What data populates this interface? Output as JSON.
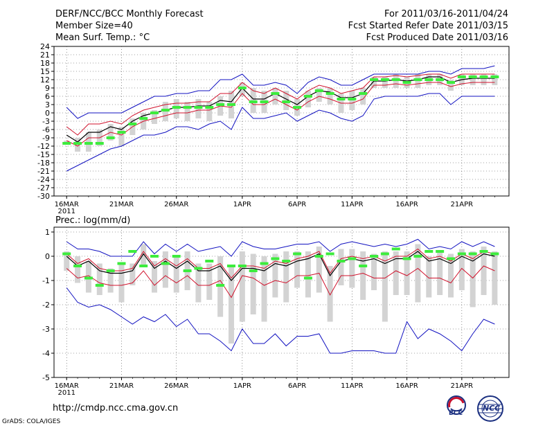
{
  "header": {
    "title": "DERF/NCC/BCC Monthly Forecast",
    "member_size": "Member Size=40",
    "variable": "Mean Surf. Temp.: °C",
    "period": "For 2011/03/16-2011/04/24",
    "started": "Fcst Started Refer Date 2011/03/15",
    "produced": "Fcst Produced Date 2011/03/16"
  },
  "footer": {
    "url": "http://cmdp.ncc.cma.gov.cn",
    "credit": "GrADS: COLA/IGES",
    "logo_bcc": "BCC",
    "logo_ncc": "NCC"
  },
  "colors": {
    "ensemble_mean": "#000000",
    "control": "#d0112b",
    "envelope": "#1010c0",
    "box": "#d3d3d3",
    "observed": "#3dec3d",
    "grid": "#444444"
  },
  "chart_data": [
    {
      "type": "line",
      "title": "Mean Surf. Temp.: °C",
      "x_tick_labels": [
        "16MAR",
        "21MAR",
        "26MAR",
        "1APR",
        "6APR",
        "11APR",
        "16APR",
        "21APR"
      ],
      "x_year_label": "2011",
      "x_tick_days": [
        1,
        6,
        11,
        17,
        22,
        27,
        32,
        37
      ],
      "days": [
        1,
        2,
        3,
        4,
        5,
        6,
        7,
        8,
        9,
        10,
        11,
        12,
        13,
        14,
        15,
        16,
        17,
        18,
        19,
        20,
        21,
        22,
        23,
        24,
        25,
        26,
        27,
        28,
        29,
        30,
        31,
        32,
        33,
        34,
        35,
        36,
        37,
        38,
        39,
        40
      ],
      "ylim": [
        -30,
        24
      ],
      "yticks": [
        -30,
        -27,
        -24,
        -21,
        -18,
        -15,
        -12,
        -9,
        -6,
        -3,
        0,
        3,
        6,
        9,
        12,
        15,
        18,
        21,
        24
      ],
      "series": [
        {
          "name": "Ensemble Mean",
          "values": [
            -8,
            -10.5,
            -7,
            -7,
            -5,
            -6,
            -3,
            -1,
            0,
            1,
            2,
            2,
            2.5,
            2.5,
            4.5,
            4,
            9,
            5,
            5,
            7,
            5,
            3,
            6,
            8,
            7.5,
            5.5,
            5.5,
            7,
            11.5,
            11.5,
            12,
            11.5,
            12,
            13,
            13,
            11,
            12,
            12.5,
            12.5,
            12.5
          ]
        },
        {
          "name": "Upper Red",
          "values": [
            -5,
            -8,
            -4,
            -4,
            -3,
            -4,
            -1,
            1,
            2,
            3,
            3.5,
            3.5,
            4,
            4,
            7,
            7,
            11,
            8,
            7,
            9,
            7,
            5,
            8,
            10,
            9,
            7,
            8,
            9,
            13,
            13,
            13.5,
            13,
            13.5,
            14,
            14,
            12.5,
            14,
            14,
            14,
            14
          ]
        },
        {
          "name": "Lower Red",
          "values": [
            -10,
            -12,
            -9,
            -9,
            -7,
            -8,
            -5,
            -3,
            -2,
            -1,
            0,
            0,
            1,
            1,
            2.5,
            2,
            7,
            3,
            3,
            5,
            3,
            1,
            4,
            6,
            5,
            3.5,
            3.5,
            5,
            10,
            10,
            10.5,
            10,
            10.5,
            11,
            11,
            9.5,
            10.5,
            11,
            11,
            11
          ]
        },
        {
          "name": "Max",
          "values": [
            2,
            -2,
            0,
            0,
            0,
            0,
            2,
            4,
            6,
            6,
            7,
            7,
            8,
            8,
            12,
            12,
            14,
            10,
            10,
            11,
            10,
            7,
            11,
            13,
            12,
            10,
            10,
            12,
            14,
            14,
            14,
            14,
            14,
            15,
            15,
            14,
            16,
            16,
            16,
            17
          ]
        },
        {
          "name": "Min",
          "values": [
            -21,
            -19,
            -17,
            -15,
            -13,
            -12,
            -10,
            -8,
            -8,
            -7,
            -5,
            -5,
            -6,
            -4,
            -3,
            -6,
            2,
            -2,
            -2,
            -1,
            0,
            -3,
            -1,
            1,
            0,
            -2,
            -3,
            -1,
            5,
            6,
            6,
            6,
            6,
            7,
            7,
            3,
            6,
            6,
            6,
            6
          ]
        }
      ],
      "boxes": {
        "high": [
          -10,
          -9,
          -7,
          -6,
          -4,
          -5,
          -2,
          0,
          1,
          4,
          5,
          4,
          5,
          4,
          6,
          8,
          11,
          9,
          8,
          9,
          8,
          5,
          8,
          9,
          9,
          7,
          8,
          9,
          13,
          13,
          14,
          13,
          14,
          14,
          14,
          12,
          14,
          14,
          14,
          14
        ],
        "low": [
          -11,
          -14,
          -14,
          -12,
          -10,
          -12,
          -8,
          -6,
          -4,
          -3,
          -2,
          -3,
          -2,
          -3,
          -1,
          -2,
          6,
          0,
          0,
          3,
          1,
          -1,
          2,
          4,
          3,
          0,
          1,
          3,
          9,
          9,
          9,
          9,
          9,
          10,
          10,
          8,
          10,
          10,
          10,
          10
        ]
      },
      "observed": [
        -11,
        -11,
        -11,
        -11,
        -9,
        -7,
        -4,
        -2,
        0,
        1,
        2,
        2,
        2,
        2,
        3,
        3,
        9,
        4,
        4,
        7,
        4,
        2,
        6,
        8,
        7,
        5,
        5,
        7,
        12,
        12,
        12,
        11,
        12,
        12,
        12,
        11,
        13,
        13,
        13,
        13
      ]
    },
    {
      "type": "line",
      "title": "Prec.: log(mm/d)",
      "x_tick_labels": [
        "16MAR",
        "21MAR",
        "26MAR",
        "1APR",
        "6APR",
        "11APR",
        "16APR",
        "21APR"
      ],
      "x_year_label": "2011",
      "x_tick_days": [
        1,
        6,
        11,
        17,
        22,
        27,
        32,
        37
      ],
      "days": [
        1,
        2,
        3,
        4,
        5,
        6,
        7,
        8,
        9,
        10,
        11,
        12,
        13,
        14,
        15,
        16,
        17,
        18,
        19,
        20,
        21,
        22,
        23,
        24,
        25,
        26,
        27,
        28,
        29,
        30,
        31,
        32,
        33,
        34,
        35,
        36,
        37,
        38,
        39,
        40
      ],
      "ylim": [
        -5,
        1.2
      ],
      "yticks": [
        -5,
        -4,
        -3,
        -2,
        -1,
        0,
        1
      ],
      "series": [
        {
          "name": "Ensemble Mean",
          "values": [
            0,
            -0.4,
            -0.2,
            -0.6,
            -0.7,
            -0.7,
            -0.6,
            0.1,
            -0.5,
            -0.2,
            -0.5,
            -0.2,
            -0.6,
            -0.6,
            -0.4,
            -1.0,
            -0.5,
            -0.5,
            -0.6,
            -0.3,
            -0.4,
            -0.2,
            -0.1,
            0.1,
            -0.8,
            -0.2,
            -0.1,
            -0.2,
            -0.1,
            -0.3,
            -0.1,
            -0.1,
            0.2,
            -0.2,
            -0.1,
            -0.3,
            0,
            -0.2,
            0.1,
            0
          ]
        },
        {
          "name": "Upper Red",
          "values": [
            0.1,
            -0.3,
            -0.1,
            -0.5,
            -0.6,
            -0.6,
            -0.5,
            0.2,
            -0.4,
            -0.1,
            -0.4,
            -0.1,
            -0.5,
            -0.5,
            -0.3,
            -0.9,
            -0.4,
            -0.4,
            -0.5,
            -0.2,
            -0.3,
            -0.1,
            0,
            0.2,
            -0.7,
            -0.1,
            0,
            -0.1,
            0,
            -0.2,
            0,
            0,
            0.3,
            -0.1,
            0,
            -0.2,
            0.1,
            -0.1,
            0.2,
            0.1
          ]
        },
        {
          "name": "Lower Red",
          "values": [
            -0.5,
            -0.9,
            -0.8,
            -1.1,
            -1.2,
            -1.2,
            -1.1,
            -0.6,
            -1.2,
            -0.8,
            -1.1,
            -0.8,
            -1.2,
            -1.2,
            -1.0,
            -1.7,
            -0.8,
            -0.9,
            -1.2,
            -1.0,
            -1.1,
            -0.8,
            -0.8,
            -0.7,
            -1.6,
            -0.8,
            -0.8,
            -0.7,
            -0.9,
            -0.9,
            -0.6,
            -0.8,
            -0.5,
            -0.9,
            -0.9,
            -1.1,
            -0.5,
            -0.9,
            -0.4,
            -0.6
          ]
        },
        {
          "name": "Max",
          "values": [
            0.6,
            0.3,
            0.3,
            0.2,
            0,
            0,
            0,
            0.6,
            0.1,
            0.5,
            0.2,
            0.5,
            0.2,
            0.3,
            0.4,
            0,
            0.6,
            0.4,
            0.3,
            0.3,
            0.4,
            0.5,
            0.5,
            0.6,
            0.2,
            0.5,
            0.6,
            0.5,
            0.4,
            0.5,
            0.4,
            0.5,
            0.7,
            0.3,
            0.4,
            0.3,
            0.6,
            0.4,
            0.6,
            0.4
          ]
        },
        {
          "name": "Min",
          "values": [
            -1.3,
            -1.9,
            -2.1,
            -2.0,
            -2.2,
            -2.5,
            -2.8,
            -2.5,
            -2.7,
            -2.4,
            -2.9,
            -2.6,
            -3.2,
            -3.2,
            -3.5,
            -3.9,
            -3.0,
            -3.6,
            -3.6,
            -3.2,
            -3.7,
            -3.3,
            -3.3,
            -3.2,
            -4.0,
            -4.0,
            -3.9,
            -3.9,
            -3.9,
            -4.0,
            -4.0,
            -2.7,
            -3.4,
            -3.0,
            -3.2,
            -3.5,
            -3.9,
            -3.2,
            -2.6,
            -2.8
          ]
        },
        {
          "name": "Tail",
          "values": [
            -0.1,
            -0.3,
            -0.4,
            -0.4,
            -0.6,
            -0.7,
            -0.5,
            0,
            -0.4,
            -0.3,
            -0.4,
            -0.3,
            -0.5,
            -0.5,
            -0.4,
            -0.8,
            -0.3,
            -0.5,
            -0.5,
            -0.3,
            -0.3,
            -0.2,
            -0.1,
            -0.1,
            -0.6,
            -0.2,
            -0.1,
            -0.2,
            -0.2,
            -0.3,
            0,
            -0.1,
            0.1,
            -0.2,
            -0.1,
            -0.3,
            -0.1,
            -0.2,
            0,
            -0.1
          ]
        }
      ],
      "boxes": {
        "high": [
          0.2,
          0,
          -0.2,
          -0.3,
          -0.5,
          -0.3,
          -0.3,
          0.5,
          -0.2,
          0.2,
          0,
          0.2,
          -0.3,
          -0.3,
          0,
          -0.4,
          0.2,
          0.1,
          0,
          0.1,
          0.2,
          0.2,
          0.2,
          0.4,
          -0.4,
          0.3,
          0.3,
          0.2,
          0.1,
          0.2,
          0.2,
          0.2,
          0.5,
          0,
          0.2,
          0.1,
          0.3,
          0.2,
          0.4,
          0.2
        ],
        "low": [
          -0.6,
          -1.1,
          -1.5,
          -1.6,
          -1.5,
          -1.9,
          -1.2,
          -0.4,
          -1.5,
          -1.3,
          -1.5,
          -1.4,
          -1.9,
          -1.8,
          -2.5,
          -3.6,
          -2.7,
          -2.4,
          -2.7,
          -1.7,
          -1.9,
          -1.3,
          -1.7,
          -1.5,
          -2.7,
          -1.2,
          -1.3,
          -1.8,
          -1.4,
          -2.7,
          -1.6,
          -1.6,
          -1.9,
          -1.7,
          -1.6,
          -1.7,
          -1.4,
          -2.1,
          -1.6,
          -2.0
        ]
      },
      "observed": [
        0.1,
        -0.4,
        -0.9,
        -1.2,
        -0.6,
        -0.3,
        0.2,
        -0.4,
        0,
        -0.3,
        0,
        -0.6,
        -0.5,
        -0.2,
        -1.2,
        -0.4,
        -0.4,
        -0.6,
        -0.3,
        -0.1,
        -0.2,
        0.1,
        -0.9,
        0,
        0.1,
        -0.2,
        -0.1,
        -0.4,
        0,
        0.1,
        0.3,
        -0.1,
        0,
        0.2,
        0.2,
        -0.1,
        0.1,
        0.1,
        0.2,
        0.1
      ]
    }
  ]
}
